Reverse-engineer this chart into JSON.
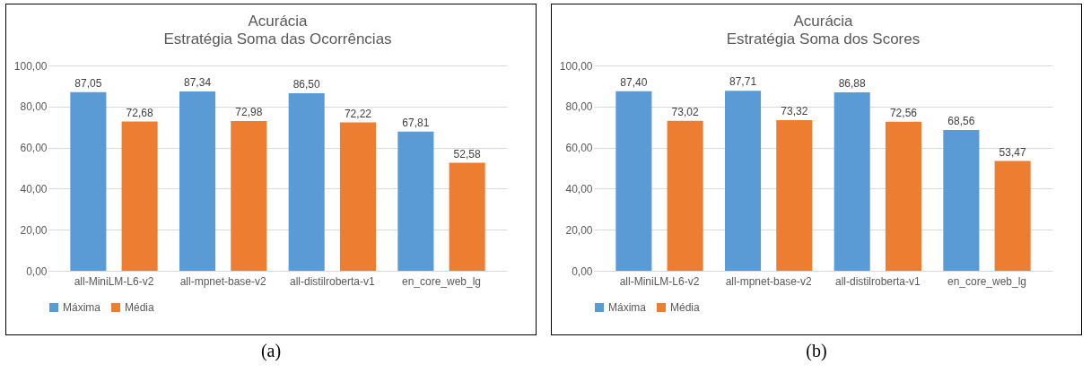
{
  "chart_data": [
    {
      "type": "bar",
      "title": "Acurácia",
      "subtitle": "Estratégia Soma das Ocorrências",
      "categories": [
        "all-MiniLM-L6-v2",
        "all-mpnet-base-v2",
        "all-distilroberta-v1",
        "en_core_web_lg"
      ],
      "series": [
        {
          "name": "Máxima",
          "color": "#5b9bd5",
          "values": [
            87.05,
            87.34,
            86.5,
            67.81
          ],
          "value_labels": [
            "87,05",
            "87,34",
            "86,50",
            "67,81"
          ]
        },
        {
          "name": "Média",
          "color": "#ed7d31",
          "values": [
            72.68,
            72.98,
            72.22,
            52.58
          ],
          "value_labels": [
            "72,68",
            "72,98",
            "72,22",
            "52,58"
          ]
        }
      ],
      "ylim": [
        0,
        100
      ],
      "yticks": [
        {
          "value": 0,
          "label": "0,00"
        },
        {
          "value": 20,
          "label": "20,00"
        },
        {
          "value": 40,
          "label": "40,00"
        },
        {
          "value": 60,
          "label": "60,00"
        },
        {
          "value": 80,
          "label": "80,00"
        },
        {
          "value": 100,
          "label": "100,00"
        }
      ],
      "grid": "y",
      "legend": "bottom",
      "annotations": [
        "(a)"
      ]
    },
    {
      "type": "bar",
      "title": "Acurácia",
      "subtitle": "Estratégia Soma dos Scores",
      "categories": [
        "all-MiniLM-L6-v2",
        "all-mpnet-base-v2",
        "all-distilroberta-v1",
        "en_core_web_lg"
      ],
      "series": [
        {
          "name": "Máxima",
          "color": "#5b9bd5",
          "values": [
            87.4,
            87.71,
            86.88,
            68.56
          ],
          "value_labels": [
            "87,40",
            "87,71",
            "86,88",
            "68,56"
          ]
        },
        {
          "name": "Média",
          "color": "#ed7d31",
          "values": [
            73.02,
            73.32,
            72.56,
            53.47
          ],
          "value_labels": [
            "73,02",
            "73,32",
            "72,56",
            "53,47"
          ]
        }
      ],
      "ylim": [
        0,
        100
      ],
      "yticks": [
        {
          "value": 0,
          "label": "0,00"
        },
        {
          "value": 20,
          "label": "20,00"
        },
        {
          "value": 40,
          "label": "40,00"
        },
        {
          "value": 60,
          "label": "60,00"
        },
        {
          "value": 80,
          "label": "80,00"
        },
        {
          "value": 100,
          "label": "100,00"
        }
      ],
      "grid": "y",
      "legend": "bottom",
      "annotations": [
        "(b)"
      ]
    }
  ]
}
